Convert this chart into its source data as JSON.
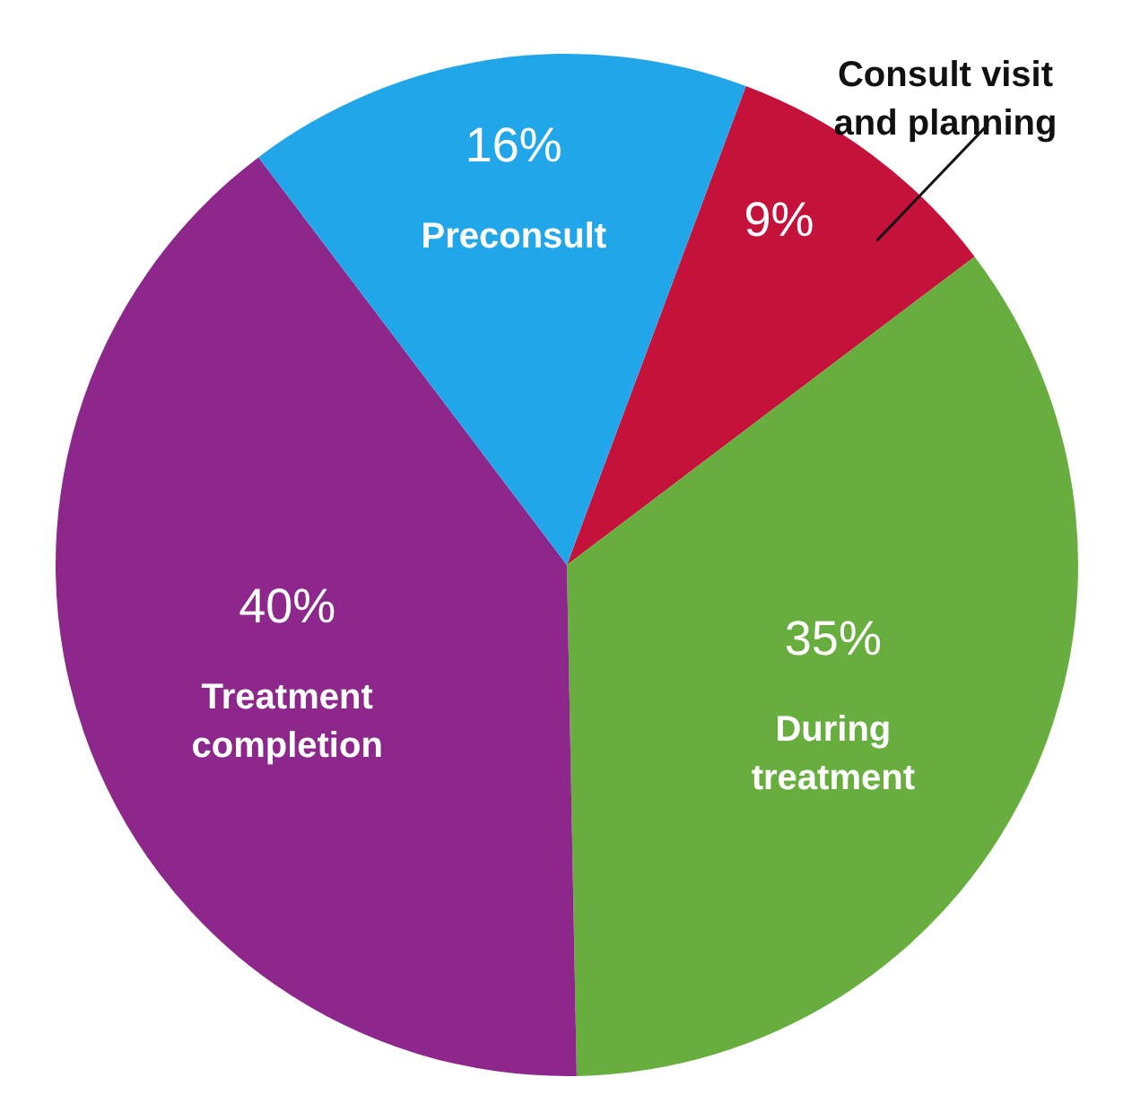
{
  "chart_data": {
    "type": "pie",
    "categories": [
      "Consult visit and planning",
      "During treatment",
      "Treatment completion",
      "Preconsult"
    ],
    "values": [
      9,
      35,
      40,
      16
    ],
    "colors": [
      "#c4123b",
      "#67ae3e",
      "#8d278b",
      "#21a6e9"
    ],
    "value_labels": [
      "9%",
      "35%",
      "40%",
      "16%"
    ]
  }
}
